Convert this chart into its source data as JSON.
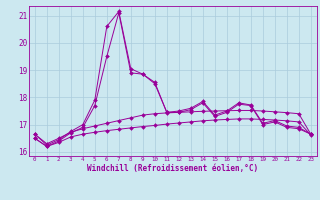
{
  "title": "",
  "xlabel": "Windchill (Refroidissement éolien,°C)",
  "background_color": "#cce8f0",
  "grid_color": "#aaccdd",
  "line_color": "#990099",
  "xlim": [
    -0.5,
    23.5
  ],
  "ylim": [
    15.85,
    21.35
  ],
  "yticks": [
    16,
    17,
    18,
    19,
    20,
    21
  ],
  "xticks": [
    0,
    1,
    2,
    3,
    4,
    5,
    6,
    7,
    8,
    9,
    10,
    11,
    12,
    13,
    14,
    15,
    16,
    17,
    18,
    19,
    20,
    21,
    22,
    23
  ],
  "line1": [
    16.5,
    16.2,
    16.4,
    16.7,
    16.9,
    17.7,
    19.5,
    21.1,
    18.9,
    18.85,
    18.5,
    17.45,
    17.45,
    17.55,
    17.8,
    17.3,
    17.45,
    17.75,
    17.7,
    17.0,
    17.1,
    16.9,
    16.85,
    16.65
  ],
  "line2": [
    16.65,
    16.25,
    16.45,
    16.75,
    17.0,
    17.9,
    20.6,
    21.15,
    19.05,
    18.85,
    18.55,
    17.45,
    17.5,
    17.6,
    17.85,
    17.35,
    17.5,
    17.8,
    17.72,
    17.05,
    17.15,
    16.95,
    16.9,
    16.65
  ],
  "line3": [
    16.65,
    16.3,
    16.5,
    16.72,
    16.85,
    16.95,
    17.05,
    17.15,
    17.25,
    17.35,
    17.4,
    17.43,
    17.45,
    17.47,
    17.49,
    17.5,
    17.51,
    17.52,
    17.52,
    17.5,
    17.47,
    17.44,
    17.4,
    16.65
  ],
  "line4": [
    16.5,
    16.2,
    16.35,
    16.55,
    16.65,
    16.72,
    16.78,
    16.83,
    16.88,
    16.93,
    16.97,
    17.02,
    17.06,
    17.1,
    17.14,
    17.17,
    17.19,
    17.21,
    17.21,
    17.19,
    17.17,
    17.14,
    17.1,
    16.62
  ]
}
